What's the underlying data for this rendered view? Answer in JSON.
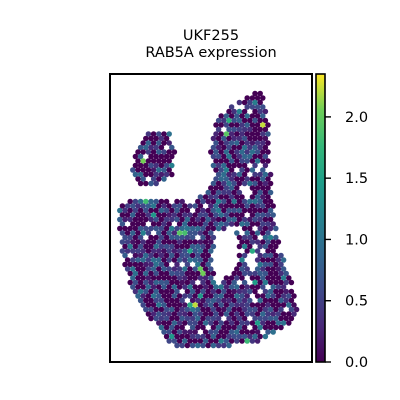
{
  "chart_data": {
    "type": "heatmap",
    "subtype": "spatial-hexbin",
    "title_lines": [
      "UKF255",
      "RAB5A expression"
    ],
    "xlabel": "",
    "ylabel": "",
    "colormap": "viridis",
    "value_range": [
      0.0,
      2.35
    ],
    "colorbar": {
      "ticks": [
        0.0,
        0.5,
        1.0,
        1.5,
        2.0
      ],
      "tick_labels": [
        "0.0",
        "0.5",
        "1.0",
        "1.5",
        "2.0"
      ],
      "placement": "right"
    },
    "spot_distribution": {
      "fraction_zero": 0.43,
      "typical_high_value": 1.0,
      "max_value": 2.3
    }
  }
}
